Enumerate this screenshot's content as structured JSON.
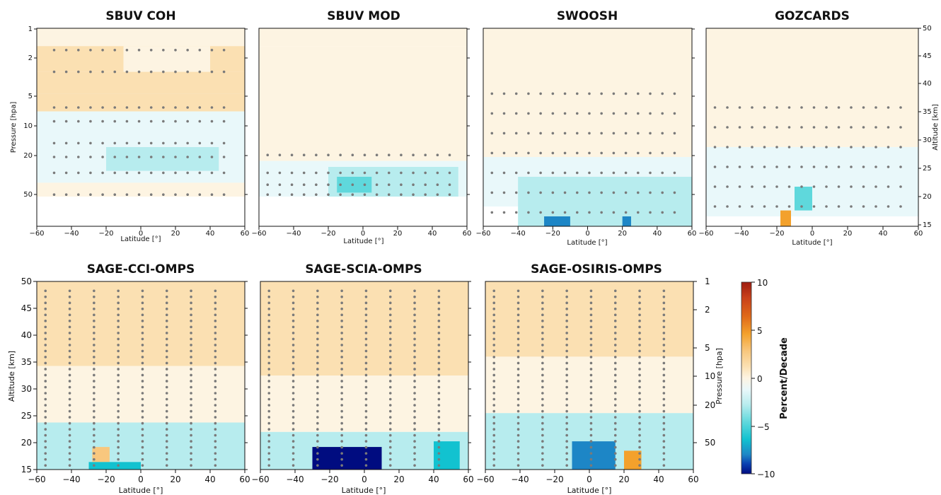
{
  "chart_data": {
    "type": "heatmap",
    "value_unit": "Percent/Decade",
    "colorbar": {
      "label": "Percent/Decade",
      "range": [
        -10,
        10
      ],
      "ticks": [
        "10",
        "5",
        "0",
        "−5",
        "−10"
      ],
      "colors": [
        "#000c80",
        "#0a3fb0",
        "#1d86c6",
        "#12c2d0",
        "#5fd8dc",
        "#b7ecee",
        "#e9f8fa",
        "#fdf4e2",
        "#fbe0b2",
        "#f8c77e",
        "#f3a12c",
        "#e06a1a",
        "#c8401a",
        "#9e1c10"
      ]
    },
    "significance_marker": "grey dots",
    "panels": [
      {
        "id": "sbuv-coh",
        "title": "SBUV COH",
        "x": {
          "label": "Latitude [°]",
          "range": [
            -60,
            60
          ],
          "ticks": [
            "−60",
            "−40",
            "−20",
            "0",
            "20",
            "40",
            "60"
          ]
        },
        "y_left": {
          "label": "Pressure [hpa]",
          "ticks": [
            "1",
            "2",
            "5",
            "10",
            "20",
            "50"
          ]
        },
        "regions": [
          {
            "y": [
              0.0,
              0.09
            ],
            "lat": [
              -60,
              60
            ],
            "v": 0.3
          },
          {
            "y": [
              0.0,
              0.09
            ],
            "lat": [
              -60,
              -40
            ],
            "v": 1.3
          },
          {
            "y": [
              0.09,
              0.22
            ],
            "lat": [
              -60,
              60
            ],
            "v": 1.8
          },
          {
            "y": [
              0.09,
              0.22
            ],
            "lat": [
              -10,
              40
            ],
            "v": 0.5
          },
          {
            "y": [
              0.22,
              0.33
            ],
            "lat": [
              -60,
              60
            ],
            "v": 2.2
          },
          {
            "y": [
              0.33,
              0.42
            ],
            "lat": [
              -60,
              60
            ],
            "v": 1.5
          },
          {
            "y": [
              0.42,
              0.55
            ],
            "lat": [
              -60,
              60
            ],
            "v": -0.5
          },
          {
            "y": [
              0.55,
              0.78
            ],
            "lat": [
              -60,
              60
            ],
            "v": -1.0
          },
          {
            "y": [
              0.6,
              0.72
            ],
            "lat": [
              -20,
              45
            ],
            "v": -2.0
          },
          {
            "y": [
              0.78,
              0.85
            ],
            "lat": [
              -60,
              60
            ],
            "v": 0.6
          }
        ],
        "dot_rows": [
          0.11,
          0.22,
          0.4,
          0.47,
          0.58,
          0.65,
          0.73,
          0.84
        ],
        "dot_lat": [
          -50,
          50
        ]
      },
      {
        "id": "sbuv-mod",
        "title": "SBUV MOD",
        "x": {
          "label": "Latitude [°]",
          "range": [
            -60,
            60
          ],
          "ticks": [
            "−60",
            "−40",
            "−20",
            "0",
            "20",
            "40",
            "60"
          ]
        },
        "regions": [
          {
            "y": [
              0.0,
              0.09
            ],
            "lat": [
              -60,
              60
            ],
            "v": 1.2
          },
          {
            "y": [
              0.09,
              0.67
            ],
            "lat": [
              -60,
              60
            ],
            "v": 1.2
          },
          {
            "y": [
              0.15,
              0.3
            ],
            "lat": [
              -25,
              40
            ],
            "v": 0.2
          },
          {
            "y": [
              0.67,
              0.85
            ],
            "lat": [
              -60,
              60
            ],
            "v": -0.3
          },
          {
            "y": [
              0.7,
              0.85
            ],
            "lat": [
              -20,
              55
            ],
            "v": -1.6
          },
          {
            "y": [
              0.75,
              0.83
            ],
            "lat": [
              -15,
              5
            ],
            "v": -3.0
          }
        ],
        "dot_rows": [
          0.64,
          0.73,
          0.79,
          0.84
        ],
        "dot_lat": [
          -55,
          55
        ]
      },
      {
        "id": "swoosh",
        "title": "SWOOSH",
        "x": {
          "label": "Latitude [°]",
          "range": [
            -60,
            60
          ],
          "ticks": [
            "−60",
            "−40",
            "−20",
            "0",
            "20",
            "40",
            "60"
          ]
        },
        "regions": [
          {
            "y": [
              0.0,
              0.45
            ],
            "lat": [
              -60,
              60
            ],
            "v": 1.4
          },
          {
            "y": [
              0.45,
              0.65
            ],
            "lat": [
              -60,
              60
            ],
            "v": 0.4
          },
          {
            "y": [
              0.65,
              0.9
            ],
            "lat": [
              -60,
              60
            ],
            "v": -1.3
          },
          {
            "y": [
              0.75,
              1.0
            ],
            "lat": [
              -40,
              60
            ],
            "v": -2.8
          },
          {
            "y": [
              0.95,
              1.0
            ],
            "lat": [
              -25,
              -10
            ],
            "v": -6.5
          },
          {
            "y": [
              0.95,
              1.0
            ],
            "lat": [
              20,
              25
            ],
            "v": -6.0
          }
        ],
        "dot_rows": [
          0.33,
          0.43,
          0.53,
          0.63,
          0.73,
          0.83,
          0.93
        ],
        "dot_lat": [
          -55,
          55
        ]
      },
      {
        "id": "gozcards",
        "title": "GOZCARDS",
        "x": {
          "label": "Latitude [°]",
          "range": [
            -60,
            60
          ],
          "ticks": [
            "−60",
            "−40",
            "−20",
            "0",
            "20",
            "40",
            "60"
          ]
        },
        "y_right": {
          "label": "Altitude [km]",
          "ticks": [
            "50",
            "45",
            "40",
            "35",
            "30",
            "25",
            "20",
            "15"
          ]
        },
        "regions": [
          {
            "y": [
              0.0,
              0.5
            ],
            "lat": [
              -60,
              60
            ],
            "v": 1.2
          },
          {
            "y": [
              0.5,
              0.7
            ],
            "lat": [
              -60,
              60
            ],
            "v": 0.3
          },
          {
            "y": [
              0.6,
              0.95
            ],
            "lat": [
              -60,
              60
            ],
            "v": -1.2
          },
          {
            "y": [
              0.8,
              0.92
            ],
            "lat": [
              -10,
              0
            ],
            "v": -3.5
          },
          {
            "y": [
              0.92,
              1.0
            ],
            "lat": [
              -18,
              -12
            ],
            "v": 5.0
          }
        ],
        "dot_rows": [
          0.4,
          0.5,
          0.6,
          0.7,
          0.8,
          0.9
        ],
        "dot_lat": [
          -55,
          55
        ]
      },
      {
        "id": "sage-cci-omps",
        "title": "SAGE-CCI-OMPS",
        "x": {
          "label": "Latitude [°]",
          "range": [
            -60,
            60
          ],
          "ticks": [
            "−60",
            "−40",
            "−20",
            "0",
            "20",
            "40",
            "60"
          ]
        },
        "y_left": {
          "label": "Altitude [km]",
          "ticks": [
            "50",
            "45",
            "40",
            "35",
            "30",
            "25",
            "20",
            "15"
          ]
        },
        "regions": [
          {
            "y": [
              0.0,
              0.45
            ],
            "lat": [
              -60,
              60
            ],
            "v": 1.5
          },
          {
            "y": [
              0.45,
              0.75
            ],
            "lat": [
              -60,
              60
            ],
            "v": 0.0
          },
          {
            "y": [
              0.75,
              1.0
            ],
            "lat": [
              -60,
              60
            ],
            "v": -1.5
          },
          {
            "y": [
              0.88,
              0.96
            ],
            "lat": [
              -28,
              -18
            ],
            "v": 3.5
          },
          {
            "y": [
              0.96,
              1.0
            ],
            "lat": [
              -30,
              0
            ],
            "v": -5.0
          }
        ],
        "dot_rows": [],
        "dot_lat": [
          -55,
          55
        ]
      },
      {
        "id": "sage-scia-omps",
        "title": "SAGE-SCIA-OMPS",
        "x": {
          "label": "Latitude [°]",
          "range": [
            -60,
            60
          ],
          "ticks": [
            "−60",
            "−40",
            "−20",
            "0",
            "20",
            "40",
            "60"
          ]
        },
        "regions": [
          {
            "y": [
              0.0,
              0.5
            ],
            "lat": [
              -60,
              60
            ],
            "v": 1.5
          },
          {
            "y": [
              0.5,
              0.8
            ],
            "lat": [
              -60,
              60
            ],
            "v": 0.2
          },
          {
            "y": [
              0.8,
              1.0
            ],
            "lat": [
              -60,
              60
            ],
            "v": -2.5
          },
          {
            "y": [
              0.88,
              1.0
            ],
            "lat": [
              -30,
              10
            ],
            "v": -9.5
          },
          {
            "y": [
              0.85,
              1.0
            ],
            "lat": [
              40,
              55
            ],
            "v": -5.0
          }
        ],
        "dot_rows": [],
        "dot_lat": [
          -55,
          55
        ]
      },
      {
        "id": "sage-osiris-omps",
        "title": "SAGE-OSIRIS-OMPS",
        "x": {
          "label": "Latitude [°]",
          "range": [
            -60,
            60
          ],
          "ticks": [
            "−60",
            "−40",
            "−20",
            "0",
            "20",
            "40",
            "60"
          ]
        },
        "y_right": {
          "label": "Pressure [hpa]",
          "ticks": [
            "1",
            "2",
            "5",
            "10",
            "20",
            "50"
          ]
        },
        "regions": [
          {
            "y": [
              0.0,
              0.4
            ],
            "lat": [
              -60,
              60
            ],
            "v": 1.6
          },
          {
            "y": [
              0.4,
              0.7
            ],
            "lat": [
              -60,
              60
            ],
            "v": 0.0
          },
          {
            "y": [
              0.7,
              1.0
            ],
            "lat": [
              -60,
              60
            ],
            "v": -1.8
          },
          {
            "y": [
              0.85,
              1.0
            ],
            "lat": [
              -10,
              15
            ],
            "v": -7.0
          },
          {
            "y": [
              0.9,
              1.0
            ],
            "lat": [
              20,
              30
            ],
            "v": 5.0
          }
        ],
        "dot_rows": [],
        "dot_lat": [
          -55,
          55
        ]
      }
    ]
  }
}
